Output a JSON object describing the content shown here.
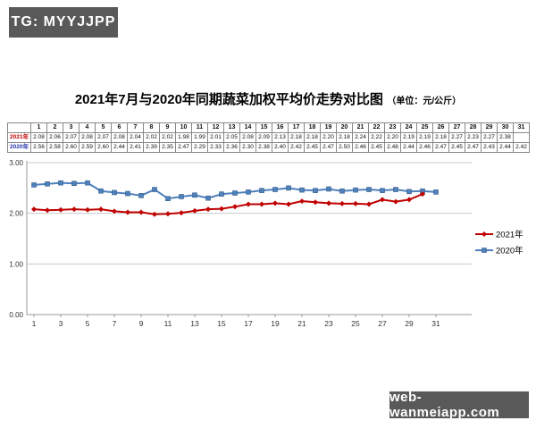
{
  "badges": {
    "top_left": "TG: MYYJJPP",
    "bottom_right": "web-wanmeiapp.com"
  },
  "title": {
    "main": "2021年7月与2020年同期蔬菜加权平均价走势对比图",
    "unit": "（单位：元/公斤）"
  },
  "colors": {
    "badge_bg": "#595959",
    "series_2021": "#c00000",
    "series_2020": "#4f81bd",
    "series_2020_edge": "#385d8a",
    "grid": "#c9c9c9",
    "axis": "#9a9a9a",
    "table_label_2021": "#c00000",
    "table_label_2020": "#2233aa"
  },
  "table": {
    "corner_label": "",
    "day_headers": [
      "1",
      "2",
      "3",
      "4",
      "5",
      "6",
      "7",
      "8",
      "9",
      "10",
      "11",
      "12",
      "13",
      "14",
      "15",
      "16",
      "17",
      "18",
      "19",
      "20",
      "21",
      "22",
      "23",
      "24",
      "25",
      "26",
      "27",
      "28",
      "29",
      "30",
      "31"
    ],
    "rows": [
      {
        "label": "2021年",
        "color": "#c00000",
        "values": [
          "2.08",
          "2.06",
          "2.07",
          "2.08",
          "2.07",
          "2.08",
          "2.04",
          "2.02",
          "2.02",
          "1.98",
          "1.99",
          "2.01",
          "2.05",
          "2.08",
          "2.09",
          "2.13",
          "2.18",
          "2.18",
          "2.20",
          "2.18",
          "2.24",
          "2.22",
          "2.20",
          "2.19",
          "2.19",
          "2.18",
          "2.27",
          "2.23",
          "2.27",
          "2.38",
          ""
        ]
      },
      {
        "label": "2020年",
        "color": "#2233aa",
        "values": [
          "2.56",
          "2.58",
          "2.60",
          "2.59",
          "2.60",
          "2.44",
          "2.41",
          "2.39",
          "2.35",
          "2.47",
          "2.29",
          "2.33",
          "2.36",
          "2.30",
          "2.38",
          "2.40",
          "2.42",
          "2.45",
          "2.47",
          "2.50",
          "2.46",
          "2.45",
          "2.48",
          "2.44",
          "2.46",
          "2.47",
          "2.45",
          "2.47",
          "2.43",
          "2.44",
          "2.42"
        ]
      }
    ]
  },
  "chart_data": {
    "type": "line",
    "title": "2021年7月与2020年同期蔬菜加权平均价走势对比图",
    "unit_label": "元/公斤",
    "x": [
      1,
      2,
      3,
      4,
      5,
      6,
      7,
      8,
      9,
      10,
      11,
      12,
      13,
      14,
      15,
      16,
      17,
      18,
      19,
      20,
      21,
      22,
      23,
      24,
      25,
      26,
      27,
      28,
      29,
      30,
      31
    ],
    "xticks": [
      1,
      3,
      5,
      7,
      9,
      11,
      13,
      15,
      17,
      19,
      21,
      23,
      25,
      27,
      29,
      31
    ],
    "ylim": [
      0,
      3
    ],
    "yticks": [
      0,
      1,
      2,
      3
    ],
    "ytick_labels": [
      "0.00",
      "1.00",
      "2.00",
      "3.00"
    ],
    "grid": true,
    "legend_position": "right",
    "series": [
      {
        "name": "2021年",
        "color": "#c00000",
        "marker": "diamond",
        "values": [
          2.08,
          2.06,
          2.07,
          2.08,
          2.07,
          2.08,
          2.04,
          2.02,
          2.02,
          1.98,
          1.99,
          2.01,
          2.05,
          2.08,
          2.09,
          2.13,
          2.18,
          2.18,
          2.2,
          2.18,
          2.24,
          2.22,
          2.2,
          2.19,
          2.19,
          2.18,
          2.27,
          2.23,
          2.27,
          2.38,
          null
        ]
      },
      {
        "name": "2020年",
        "color": "#4f81bd",
        "marker": "square",
        "values": [
          2.56,
          2.58,
          2.6,
          2.59,
          2.6,
          2.44,
          2.41,
          2.39,
          2.35,
          2.47,
          2.29,
          2.33,
          2.36,
          2.3,
          2.38,
          2.4,
          2.42,
          2.45,
          2.47,
          2.5,
          2.46,
          2.45,
          2.48,
          2.44,
          2.46,
          2.47,
          2.45,
          2.47,
          2.43,
          2.44,
          2.42
        ]
      }
    ]
  }
}
